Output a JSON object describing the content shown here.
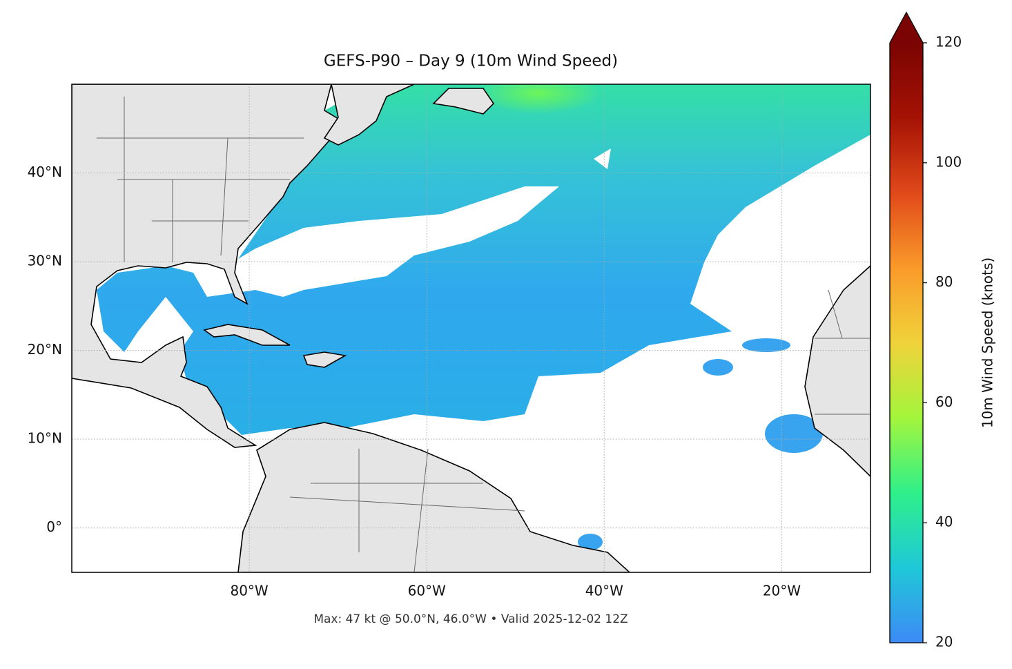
{
  "chart_data": {
    "type": "map",
    "title": "GEFS-P90 – Day 9 (10m Wind Speed)",
    "footer": "Max: 47 kt @ 50.0°N, 46.0°W • Valid 2025-12-02 12Z",
    "xlim": [
      -100,
      -10
    ],
    "ylim": [
      -5,
      50
    ],
    "xticks": [
      {
        "value": -80,
        "label": "80°W"
      },
      {
        "value": -60,
        "label": "60°W"
      },
      {
        "value": -40,
        "label": "40°W"
      },
      {
        "value": -20,
        "label": "20°W"
      }
    ],
    "yticks": [
      {
        "value": 0,
        "label": "0°"
      },
      {
        "value": 10,
        "label": "10°N"
      },
      {
        "value": 20,
        "label": "20°N"
      },
      {
        "value": 30,
        "label": "30°N"
      },
      {
        "value": 40,
        "label": "40°N"
      }
    ],
    "grid": true,
    "colorbar": {
      "label": "10m Wind Speed (knots)",
      "lim": [
        20,
        120
      ],
      "ticks": [
        20,
        40,
        60,
        80,
        100,
        120
      ],
      "colors": [
        "#3d8af5",
        "#1fc8d8",
        "#2ef08a",
        "#a4f53c",
        "#f0d23a",
        "#fa9a2a",
        "#e0491a",
        "#a51204",
        "#7a0403"
      ]
    }
  }
}
